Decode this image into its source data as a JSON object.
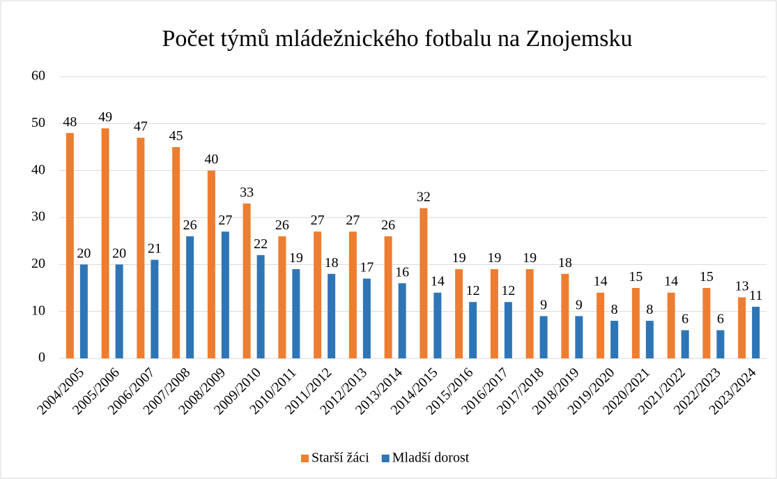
{
  "chart_data": {
    "type": "bar",
    "title": "Počet týmů mládežnického fotbalu na Znojemsku",
    "categories": [
      "2004/2005",
      "2005/2006",
      "2006/2007",
      "2007/2008",
      "2008/2009",
      "2009/2010",
      "2010/2011",
      "2011/2012",
      "2012/2013",
      "2013/2014",
      "2014/2015",
      "2015/2016",
      "2016/2017",
      "2017/2018",
      "2018/2019",
      "2019/2020",
      "2020/2021",
      "2021/2022",
      "2022/2023",
      "2023/2024"
    ],
    "series": [
      {
        "name": "Starší žáci",
        "color": "#ed7d31",
        "values": [
          48,
          49,
          47,
          45,
          40,
          33,
          26,
          27,
          27,
          26,
          32,
          19,
          19,
          19,
          18,
          14,
          15,
          14,
          15,
          13
        ]
      },
      {
        "name": "Mladší dorost",
        "color": "#2e75b6",
        "values": [
          20,
          20,
          21,
          26,
          27,
          22,
          19,
          18,
          17,
          16,
          14,
          12,
          12,
          9,
          9,
          8,
          8,
          6,
          6,
          11
        ]
      }
    ],
    "ylim": [
      0,
      60
    ],
    "yticks": [
      0,
      10,
      20,
      30,
      40,
      50,
      60
    ],
    "grid": true,
    "legend": "bottom"
  }
}
